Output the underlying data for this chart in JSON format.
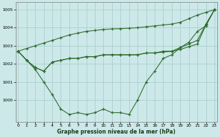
{
  "x": [
    0,
    1,
    2,
    3,
    4,
    5,
    6,
    7,
    8,
    9,
    10,
    11,
    12,
    13,
    14,
    15,
    16,
    17,
    18,
    19,
    20,
    21,
    22,
    23
  ],
  "line1": [
    1002.7,
    1002.2,
    1001.8,
    1001.6,
    1002.1,
    1002.2,
    1002.3,
    1002.3,
    1002.4,
    1002.4,
    1002.5,
    1002.5,
    1002.5,
    1002.5,
    1002.5,
    1002.6,
    1002.6,
    1002.65,
    1002.7,
    1002.8,
    1002.95,
    1003.1,
    1004.15,
    1005.0
  ],
  "line2": [
    1002.7,
    1002.2,
    1001.8,
    1001.6,
    1002.1,
    1002.2,
    1002.3,
    1002.3,
    1002.4,
    1002.4,
    1002.5,
    1002.5,
    1002.5,
    1002.5,
    1002.5,
    1002.6,
    1002.6,
    1002.7,
    1002.7,
    1002.9,
    1003.1,
    1003.3,
    1004.2,
    1005.0
  ],
  "line3": [
    1002.7,
    1002.2,
    1001.7,
    1001.0,
    1000.3,
    999.5,
    999.2,
    999.3,
    999.2,
    999.3,
    999.5,
    999.3,
    999.3,
    999.2,
    1000.0,
    1001.0,
    1001.6,
    1002.3,
    1002.5,
    1002.9,
    1003.2,
    1003.8,
    1004.1,
    1005.0
  ],
  "line4": [
    1002.7,
    1002.85,
    1003.0,
    1003.15,
    1003.3,
    1003.45,
    1003.6,
    1003.7,
    1003.8,
    1003.85,
    1003.9,
    1003.93,
    1003.95,
    1003.97,
    1004.0,
    1004.05,
    1004.1,
    1004.15,
    1004.2,
    1004.3,
    1004.5,
    1004.7,
    1004.85,
    1005.0
  ],
  "bg_color": "#cce8e8",
  "grid_color": "#aacece",
  "line_color": "#2d6a2d",
  "marker": "+",
  "xlabel": "Graphe pression niveau de la mer (hPa)",
  "ylim_min": 998.8,
  "ylim_max": 1005.4,
  "yticks": [
    1000,
    1001,
    1002,
    1003,
    1004,
    1005
  ],
  "xlim_min": -0.3,
  "xlim_max": 23.3
}
